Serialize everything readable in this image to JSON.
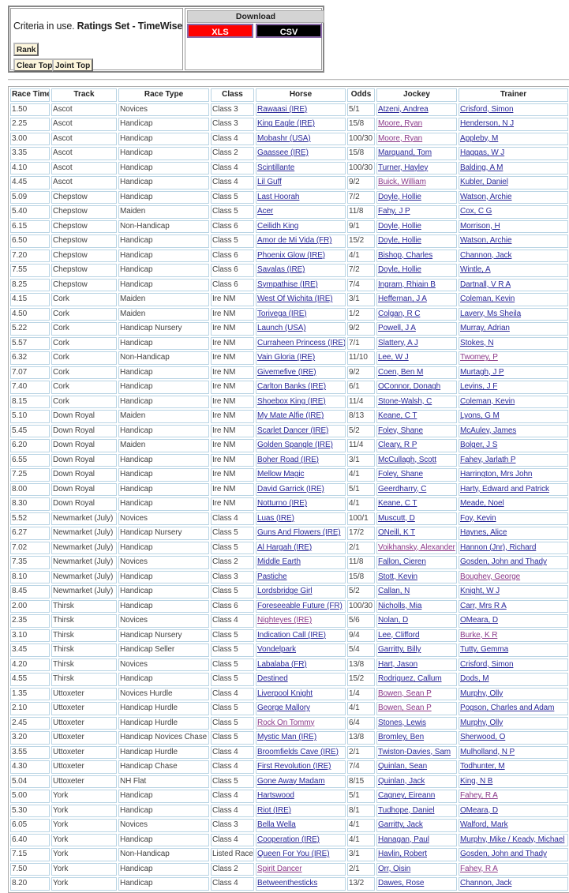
{
  "criteria": {
    "prefix": "Criteria in use.",
    "name": "Ratings Set - TimeWise"
  },
  "buttons": {
    "rank": "Rank",
    "clear_top": "Clear Top",
    "joint_top": "Joint Top"
  },
  "download": {
    "title": "Download",
    "xls": "XLS",
    "csv": "CSV",
    "xls_color": "#ff0000",
    "csv_color": "#000000"
  },
  "colors": {
    "link": "#2a2a9a",
    "visited": "#8a3a8a"
  },
  "table": {
    "headers": [
      "Race Time",
      "Track",
      "Race Type",
      "Class",
      "Horse",
      "Odds",
      "Jockey",
      "Trainer"
    ],
    "rows": [
      {
        "time": "1.50",
        "track": "Ascot",
        "type": "Novices",
        "class": "Class 3",
        "horse": "Rawaasi (IRE)",
        "odds": "5/1",
        "jockey": "Atzeni, Andrea",
        "trainer": "Crisford, Simon"
      },
      {
        "time": "2.25",
        "track": "Ascot",
        "type": "Handicap",
        "class": "Class 3",
        "horse": "King Eagle (IRE)",
        "odds": "15/8",
        "jockey": "Moore, Ryan",
        "trainer": "Henderson, N J",
        "visited": [
          "jockey"
        ]
      },
      {
        "time": "3.00",
        "track": "Ascot",
        "type": "Handicap",
        "class": "Class 4",
        "horse": "Mobashr (USA)",
        "odds": "100/30",
        "jockey": "Moore, Ryan",
        "trainer": "Appleby, M",
        "visited": [
          "jockey"
        ]
      },
      {
        "time": "3.35",
        "track": "Ascot",
        "type": "Handicap",
        "class": "Class 2",
        "horse": "Gaassee (IRE)",
        "odds": "15/8",
        "jockey": "Marquand, Tom",
        "trainer": "Haggas, W J"
      },
      {
        "time": "4.10",
        "track": "Ascot",
        "type": "Handicap",
        "class": "Class 4",
        "horse": "Scintillante",
        "odds": "100/30",
        "jockey": "Turner, Hayley",
        "trainer": "Balding, A M"
      },
      {
        "time": "4.45",
        "track": "Ascot",
        "type": "Handicap",
        "class": "Class 4",
        "horse": "Lil Guff",
        "odds": "9/2",
        "jockey": "Buick, William",
        "trainer": "Kubler, Daniel",
        "visited": [
          "jockey"
        ]
      },
      {
        "time": "5.09",
        "track": "Chepstow",
        "type": "Handicap",
        "class": "Class 5",
        "horse": "Last Hoorah",
        "odds": "7/2",
        "jockey": "Doyle, Hollie",
        "trainer": "Watson, Archie"
      },
      {
        "time": "5.40",
        "track": "Chepstow",
        "type": "Maiden",
        "class": "Class 5",
        "horse": "Acer",
        "odds": "11/8",
        "jockey": "Fahy, J P",
        "trainer": "Cox, C G"
      },
      {
        "time": "6.15",
        "track": "Chepstow",
        "type": "Non-Handicap",
        "class": "Class 6",
        "horse": "Ceilidh King",
        "odds": "9/1",
        "jockey": "Doyle, Hollie",
        "trainer": "Morrison, H"
      },
      {
        "time": "6.50",
        "track": "Chepstow",
        "type": "Handicap",
        "class": "Class 5",
        "horse": "Amor de Mi Vida (FR)",
        "odds": "15/2",
        "jockey": "Doyle, Hollie",
        "trainer": "Watson, Archie"
      },
      {
        "time": "7.20",
        "track": "Chepstow",
        "type": "Handicap",
        "class": "Class 6",
        "horse": "Phoenix Glow (IRE)",
        "odds": "4/1",
        "jockey": "Bishop, Charles",
        "trainer": "Channon, Jack"
      },
      {
        "time": "7.55",
        "track": "Chepstow",
        "type": "Handicap",
        "class": "Class 6",
        "horse": "Savalas (IRE)",
        "odds": "7/2",
        "jockey": "Doyle, Hollie",
        "trainer": "Wintle, A"
      },
      {
        "time": "8.25",
        "track": "Chepstow",
        "type": "Handicap",
        "class": "Class 6",
        "horse": "Sympathise (IRE)",
        "odds": "7/4",
        "jockey": "Ingram, Rhiain B",
        "trainer": "Dartnall, V R A"
      },
      {
        "time": "4.15",
        "track": "Cork",
        "type": "Maiden",
        "class": "Ire NM",
        "horse": "West Of Wichita (IRE)",
        "odds": "3/1",
        "jockey": "Heffernan, J A",
        "trainer": "Coleman, Kevin"
      },
      {
        "time": "4.50",
        "track": "Cork",
        "type": "Maiden",
        "class": "Ire NM",
        "horse": "Torivega (IRE)",
        "odds": "1/2",
        "jockey": "Colgan, R C",
        "trainer": "Lavery, Ms Sheila"
      },
      {
        "time": "5.22",
        "track": "Cork",
        "type": "Handicap Nursery",
        "class": "Ire NM",
        "horse": "Launch (USA)",
        "odds": "9/2",
        "jockey": "Powell, J A",
        "trainer": "Murray, Adrian"
      },
      {
        "time": "5.57",
        "track": "Cork",
        "type": "Handicap",
        "class": "Ire NM",
        "horse": "Curraheen Princess (IRE)",
        "odds": "7/1",
        "jockey": "Slattery, A J",
        "trainer": "Stokes, N"
      },
      {
        "time": "6.32",
        "track": "Cork",
        "type": "Non-Handicap",
        "class": "Ire NM",
        "horse": "Vain Gloria (IRE)",
        "odds": "11/10",
        "jockey": "Lee, W J",
        "trainer": "Twomey, P",
        "visited": [
          "trainer"
        ]
      },
      {
        "time": "7.07",
        "track": "Cork",
        "type": "Handicap",
        "class": "Ire NM",
        "horse": "Givemefive (IRE)",
        "odds": "9/2",
        "jockey": "Coen, Ben M",
        "trainer": "Murtagh, J P"
      },
      {
        "time": "7.40",
        "track": "Cork",
        "type": "Handicap",
        "class": "Ire NM",
        "horse": "Carlton Banks (IRE)",
        "odds": "6/1",
        "jockey": "OConnor, Donagh",
        "trainer": "Levins, J F"
      },
      {
        "time": "8.15",
        "track": "Cork",
        "type": "Handicap",
        "class": "Ire NM",
        "horse": "Shoebox King (IRE)",
        "odds": "11/4",
        "jockey": "Stone-Walsh, C",
        "trainer": "Coleman, Kevin"
      },
      {
        "time": "5.10",
        "track": "Down Royal",
        "type": "Maiden",
        "class": "Ire NM",
        "horse": "My Mate Alfie (IRE)",
        "odds": "8/13",
        "jockey": "Keane, C T",
        "trainer": "Lyons, G M"
      },
      {
        "time": "5.45",
        "track": "Down Royal",
        "type": "Handicap",
        "class": "Ire NM",
        "horse": "Scarlet Dancer (IRE)",
        "odds": "5/2",
        "jockey": "Foley, Shane",
        "trainer": "McAuley, James"
      },
      {
        "time": "6.20",
        "track": "Down Royal",
        "type": "Maiden",
        "class": "Ire NM",
        "horse": "Golden Spangle (IRE)",
        "odds": "11/4",
        "jockey": "Cleary, R P",
        "trainer": "Bolger, J S"
      },
      {
        "time": "6.55",
        "track": "Down Royal",
        "type": "Handicap",
        "class": "Ire NM",
        "horse": "Boher Road (IRE)",
        "odds": "3/1",
        "jockey": "McCullagh, Scott",
        "trainer": "Fahey, Jarlath P"
      },
      {
        "time": "7.25",
        "track": "Down Royal",
        "type": "Handicap",
        "class": "Ire NM",
        "horse": "Mellow Magic",
        "odds": "4/1",
        "jockey": "Foley, Shane",
        "trainer": "Harrington, Mrs John"
      },
      {
        "time": "8.00",
        "track": "Down Royal",
        "type": "Handicap",
        "class": "Ire NM",
        "horse": "David Garrick (IRE)",
        "odds": "5/1",
        "jockey": "Geerdharry, C",
        "trainer": "Harty, Edward and Patrick"
      },
      {
        "time": "8.30",
        "track": "Down Royal",
        "type": "Handicap",
        "class": "Ire NM",
        "horse": "Notturno (IRE)",
        "odds": "4/1",
        "jockey": "Keane, C T",
        "trainer": "Meade, Noel"
      },
      {
        "time": "5.52",
        "track": "Newmarket (July)",
        "type": "Novices",
        "class": "Class 4",
        "horse": "Luas (IRE)",
        "odds": "100/1",
        "jockey": "Muscutt, D",
        "trainer": "Foy, Kevin"
      },
      {
        "time": "6.27",
        "track": "Newmarket (July)",
        "type": "Handicap Nursery",
        "class": "Class 5",
        "horse": "Guns And Flowers (IRE)",
        "odds": "17/2",
        "jockey": "ONeill, K T",
        "trainer": "Haynes, Alice"
      },
      {
        "time": "7.02",
        "track": "Newmarket (July)",
        "type": "Handicap",
        "class": "Class 5",
        "horse": "Al Hargah (IRE)",
        "odds": "2/1",
        "jockey": "Voikhansky, Alexander",
        "trainer": "Hannon (Jnr), Richard",
        "visited": [
          "jockey"
        ]
      },
      {
        "time": "7.35",
        "track": "Newmarket (July)",
        "type": "Novices",
        "class": "Class 2",
        "horse": "Middle Earth",
        "odds": "11/8",
        "jockey": "Fallon, Cieren",
        "trainer": "Gosden, John and Thady"
      },
      {
        "time": "8.10",
        "track": "Newmarket (July)",
        "type": "Handicap",
        "class": "Class 3",
        "horse": "Pastiche",
        "odds": "15/8",
        "jockey": "Stott, Kevin",
        "trainer": "Boughey, George",
        "visited": [
          "trainer"
        ]
      },
      {
        "time": "8.45",
        "track": "Newmarket (July)",
        "type": "Handicap",
        "class": "Class 5",
        "horse": "Lordsbridge Girl",
        "odds": "5/2",
        "jockey": "Callan, N",
        "trainer": "Knight, W J"
      },
      {
        "time": "2.00",
        "track": "Thirsk",
        "type": "Handicap",
        "class": "Class 6",
        "horse": "Foreseeable Future (FR)",
        "odds": "100/30",
        "jockey": "Nicholls, Mia",
        "trainer": "Carr, Mrs R A"
      },
      {
        "time": "2.35",
        "track": "Thirsk",
        "type": "Novices",
        "class": "Class 4",
        "horse": "Nighteyes (IRE)",
        "odds": "5/6",
        "jockey": "Nolan, D",
        "trainer": "OMeara, D",
        "visited": [
          "horse"
        ]
      },
      {
        "time": "3.10",
        "track": "Thirsk",
        "type": "Handicap Nursery",
        "class": "Class 5",
        "horse": "Indication Call (IRE)",
        "odds": "9/4",
        "jockey": "Lee, Clifford",
        "trainer": "Burke, K R",
        "visited": [
          "trainer"
        ]
      },
      {
        "time": "3.45",
        "track": "Thirsk",
        "type": "Handicap Seller",
        "class": "Class 5",
        "horse": "Vondelpark",
        "odds": "5/4",
        "jockey": "Garritty, Billy",
        "trainer": "Tutty, Gemma"
      },
      {
        "time": "4.20",
        "track": "Thirsk",
        "type": "Novices",
        "class": "Class 5",
        "horse": "Labalaba (FR)",
        "odds": "13/8",
        "jockey": "Hart, Jason",
        "trainer": "Crisford, Simon"
      },
      {
        "time": "4.55",
        "track": "Thirsk",
        "type": "Handicap",
        "class": "Class 5",
        "horse": "Destined",
        "odds": "15/2",
        "jockey": "Rodriguez, Callum",
        "trainer": "Dods, M"
      },
      {
        "time": "1.35",
        "track": "Uttoxeter",
        "type": "Novices Hurdle",
        "class": "Class 4",
        "horse": "Liverpool Knight",
        "odds": "1/4",
        "jockey": "Bowen, Sean P",
        "trainer": "Murphy, Olly",
        "visited": [
          "jockey"
        ]
      },
      {
        "time": "2.10",
        "track": "Uttoxeter",
        "type": "Handicap Hurdle",
        "class": "Class 5",
        "horse": "George Mallory",
        "odds": "4/1",
        "jockey": "Bowen, Sean P",
        "trainer": "Pogson, Charles and Adam",
        "visited": [
          "jockey"
        ]
      },
      {
        "time": "2.45",
        "track": "Uttoxeter",
        "type": "Handicap Hurdle",
        "class": "Class 5",
        "horse": "Rock On Tommy",
        "odds": "6/4",
        "jockey": "Stones, Lewis",
        "trainer": "Murphy, Olly",
        "visited": [
          "horse"
        ]
      },
      {
        "time": "3.20",
        "track": "Uttoxeter",
        "type": "Handicap Novices Chase",
        "class": "Class 5",
        "horse": "Mystic Man (IRE)",
        "odds": "13/8",
        "jockey": "Bromley, Ben",
        "trainer": "Sherwood, O"
      },
      {
        "time": "3.55",
        "track": "Uttoxeter",
        "type": "Handicap Hurdle",
        "class": "Class 4",
        "horse": "Broomfields Cave (IRE)",
        "odds": "2/1",
        "jockey": "Twiston-Davies, Sam",
        "trainer": "Mulholland, N P"
      },
      {
        "time": "4.30",
        "track": "Uttoxeter",
        "type": "Handicap Chase",
        "class": "Class 4",
        "horse": "First Revolution (IRE)",
        "odds": "7/4",
        "jockey": "Quinlan, Sean",
        "trainer": "Todhunter, M"
      },
      {
        "time": "5.04",
        "track": "Uttoxeter",
        "type": "NH Flat",
        "class": "Class 5",
        "horse": "Gone Away Madam",
        "odds": "8/15",
        "jockey": "Quinlan, Jack",
        "trainer": "King, N B"
      },
      {
        "time": "5.00",
        "track": "York",
        "type": "Handicap",
        "class": "Class 4",
        "horse": "Hartswood",
        "odds": "5/1",
        "jockey": "Cagney, Eireann",
        "trainer": "Fahey, R A",
        "visited": [
          "trainer"
        ]
      },
      {
        "time": "5.30",
        "track": "York",
        "type": "Handicap",
        "class": "Class 4",
        "horse": "Riot (IRE)",
        "odds": "8/1",
        "jockey": "Tudhope, Daniel",
        "trainer": "OMeara, D"
      },
      {
        "time": "6.05",
        "track": "York",
        "type": "Novices",
        "class": "Class 3",
        "horse": "Bella Wella",
        "odds": "4/1",
        "jockey": "Garritty, Jack",
        "trainer": "Walford, Mark"
      },
      {
        "time": "6.40",
        "track": "York",
        "type": "Handicap",
        "class": "Class 4",
        "horse": "Cooperation (IRE)",
        "odds": "4/1",
        "jockey": "Hanagan, Paul",
        "trainer": "Murphy, Mike / Keady, Michael"
      },
      {
        "time": "7.15",
        "track": "York",
        "type": "Non-Handicap",
        "class": "Listed Race",
        "horse": "Queen For You (IRE)",
        "odds": "3/1",
        "jockey": "Havlin, Robert",
        "trainer": "Gosden, John and Thady"
      },
      {
        "time": "7.50",
        "track": "York",
        "type": "Handicap",
        "class": "Class 2",
        "horse": "Spirit Dancer",
        "odds": "2/1",
        "jockey": "Orr, Oisin",
        "trainer": "Fahey, R A",
        "visited": [
          "horse",
          "trainer"
        ]
      },
      {
        "time": "8.20",
        "track": "York",
        "type": "Handicap",
        "class": "Class 4",
        "horse": "Betweenthesticks",
        "odds": "13/2",
        "jockey": "Dawes, Rose",
        "trainer": "Channon, Jack"
      }
    ]
  }
}
